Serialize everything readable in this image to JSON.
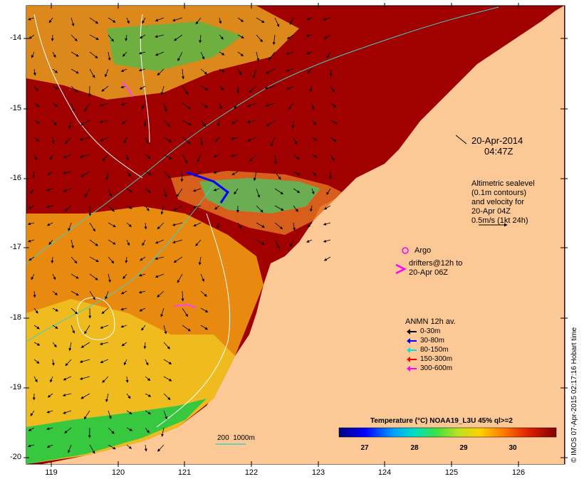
{
  "map": {
    "date": "20-Apr-2014",
    "time": "04:47Z",
    "y_ticks": [
      "-14",
      "-15",
      "-16",
      "-17",
      "-18",
      "-19",
      "-20"
    ],
    "x_ticks": [
      "119",
      "120",
      "121",
      "122",
      "123",
      "124",
      "125",
      "126"
    ],
    "altimetry_note": [
      "Altimetric sealevel",
      "(0.1m contours)",
      "and velocity for",
      "20-Apr 04Z",
      "0.5m/s (1kt 24h)"
    ],
    "argo_label": "Argo",
    "drifters_note": [
      "drifters@12h to",
      "20-Apr 06Z"
    ],
    "anmn": {
      "title": "ANMN 12h av.",
      "items": [
        {
          "label": "0-30m",
          "color": "#000000"
        },
        {
          "label": "30-80m",
          "color": "#0000ff"
        },
        {
          "label": "80-150m",
          "color": "#00e0e0"
        },
        {
          "label": "150-300m",
          "color": "#ff0000"
        },
        {
          "label": "300-600m",
          "color": "#ff00ff"
        }
      ]
    },
    "colorbar": {
      "title": "Temperature (°C) NOAA19_L3U 45% ql>=2",
      "ticks": [
        "27",
        "28",
        "29",
        "30"
      ]
    },
    "depth_contours_label": "200  1000m",
    "credit": "© IMOS 07-Apr-2015 02:17:16 Hobart time",
    "colors": {
      "warm": "#a00000",
      "land": "#fcc896",
      "orange": "#e88a10",
      "yellow": "#f0c020",
      "green": "#38c840"
    }
  }
}
